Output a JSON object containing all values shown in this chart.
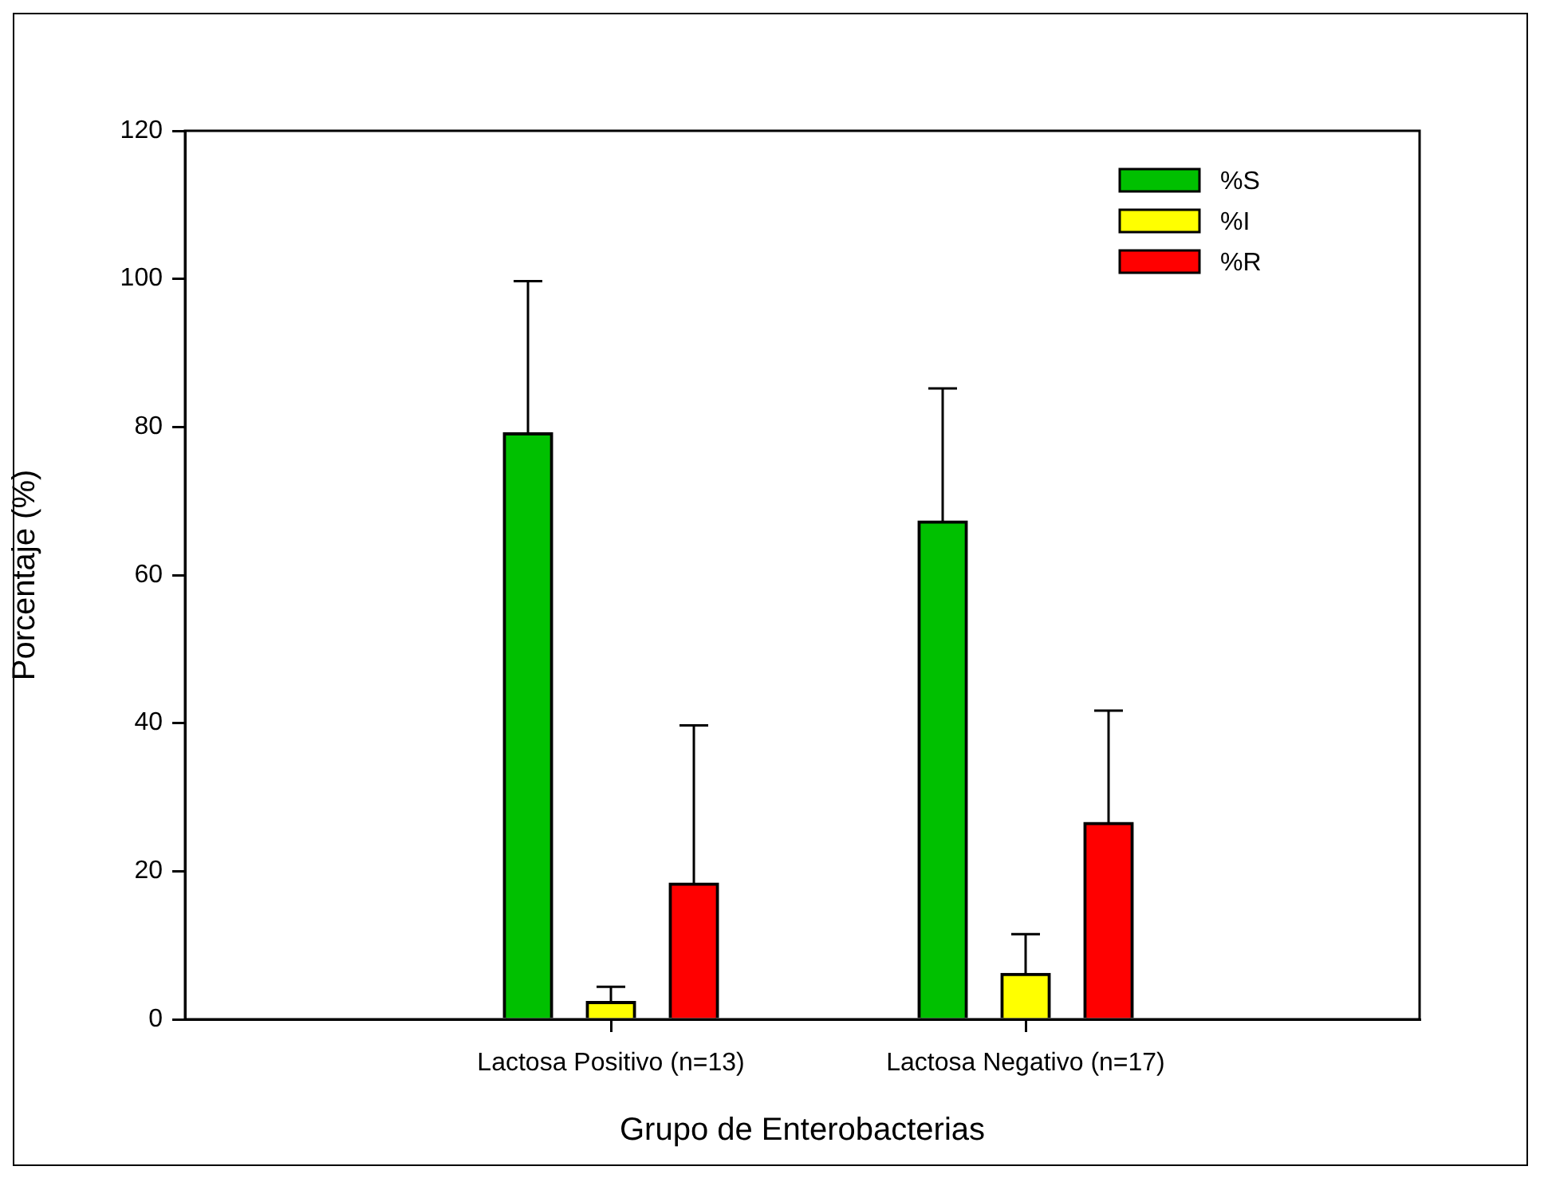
{
  "chart_data": {
    "type": "bar",
    "xlabel": "Grupo de Enterobacterias",
    "ylabel": "Porcentaje (%)",
    "categories": [
      "Lactosa Positivo (n=13)",
      "Lactosa Negativo (n=17)"
    ],
    "series": [
      {
        "name": "%S",
        "color": "#00c000",
        "values": [
          79.2,
          67.3
        ],
        "errors": [
          [
            79.2,
            99.7
          ],
          [
            67.3,
            85.2
          ]
        ]
      },
      {
        "name": "%I",
        "color": "#ffff00",
        "values": [
          2.4,
          6.2
        ],
        "errors": [
          [
            2.4,
            4.4
          ],
          [
            6.2,
            11.5
          ]
        ]
      },
      {
        "name": "%R",
        "color": "#ff0000",
        "values": [
          18.4,
          26.6
        ],
        "errors": [
          [
            18.4,
            39.7
          ],
          [
            26.6,
            41.7
          ]
        ]
      }
    ],
    "ylim": [
      0,
      120
    ],
    "yticks": [
      0,
      20,
      40,
      60,
      80,
      100,
      120
    ],
    "grid": false,
    "legend": "top right"
  }
}
